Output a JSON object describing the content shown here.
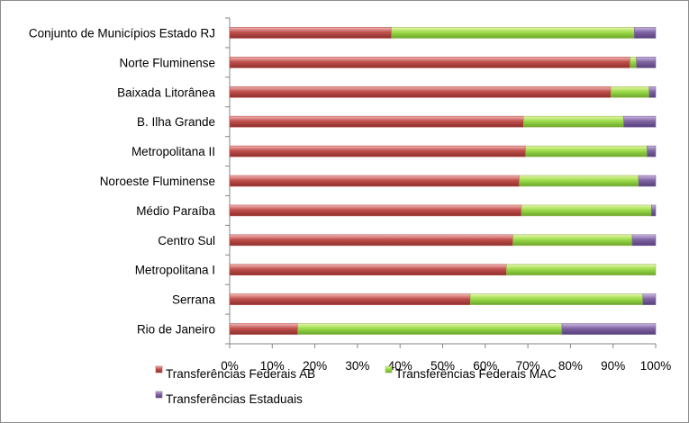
{
  "chart_data": {
    "type": "bar",
    "orientation": "horizontal",
    "stacked": true,
    "percent": true,
    "title": "",
    "xlabel": "",
    "ylabel": "",
    "xlim": [
      0,
      100
    ],
    "x_ticks": [
      "0%",
      "10%",
      "20%",
      "30%",
      "40%",
      "50%",
      "60%",
      "70%",
      "80%",
      "90%",
      "100%"
    ],
    "categories": [
      "Conjunto de Municípios Estado RJ",
      "Norte Fluminense",
      "Baixada Litorânea",
      "B. Ilha Grande",
      "Metropolitana II",
      "Noroeste Fluminense",
      "Médio Paraíba",
      "Centro Sul",
      "Metropolitana I",
      "Serrana",
      "Rio de Janeiro"
    ],
    "series": [
      {
        "name": "Transferências Federais AB",
        "color": "#c0504d",
        "values": [
          38,
          94,
          89.5,
          69,
          69.5,
          68,
          68.5,
          66.5,
          65,
          56.5,
          16
        ]
      },
      {
        "name": "Transferências Federais MAC",
        "color": "#9bbb59",
        "values": [
          57,
          1.5,
          9,
          23.5,
          28.5,
          28,
          30.5,
          28,
          35,
          40.5,
          62
        ]
      },
      {
        "name": "Transferências Estaduais",
        "color": "#8064a2",
        "values": [
          5,
          4.5,
          1.5,
          7.5,
          2,
          4,
          1,
          5.5,
          0,
          3,
          22
        ]
      }
    ],
    "grid": false,
    "legend_position": "bottom"
  }
}
